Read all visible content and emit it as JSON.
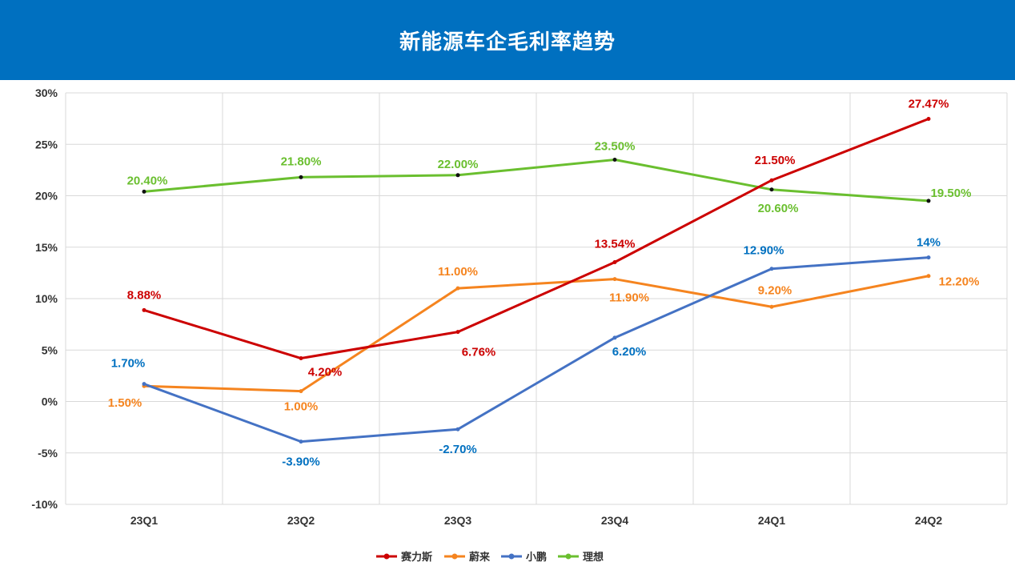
{
  "header": {
    "title": "新能源车企毛利率趋势"
  },
  "chart_data": {
    "type": "line",
    "title": "新能源车企毛利率趋势",
    "xlabel": "",
    "ylabel": "",
    "categories": [
      "23Q1",
      "23Q2",
      "23Q3",
      "23Q4",
      "24Q1",
      "24Q2"
    ],
    "ylim": [
      -10,
      30
    ],
    "yticks": [
      -10,
      -5,
      0,
      5,
      10,
      15,
      20,
      25,
      30
    ],
    "ytick_labels": [
      "-10%",
      "-5%",
      "0%",
      "5%",
      "10%",
      "15%",
      "20%",
      "25%",
      "30%"
    ],
    "grid": true,
    "legend_position": "bottom",
    "series": [
      {
        "name": "赛力斯",
        "color": "#cc0000",
        "label_color": "#cc0000",
        "values": [
          8.88,
          4.2,
          6.76,
          13.54,
          21.5,
          27.47
        ],
        "labels": [
          "8.88%",
          "4.20%",
          "6.76%",
          "13.54%",
          "21.50%",
          "27.47%"
        ]
      },
      {
        "name": "蔚来",
        "color": "#f5841f",
        "label_color": "#f5841f",
        "values": [
          1.5,
          1.0,
          11.0,
          11.9,
          9.2,
          12.2
        ],
        "labels": [
          "1.50%",
          "1.00%",
          "11.00%",
          "11.90%",
          "9.20%",
          "12.20%"
        ]
      },
      {
        "name": "小鹏",
        "color": "#4472c4",
        "label_color": "#0070c0",
        "values": [
          1.7,
          -3.9,
          -2.7,
          6.2,
          12.9,
          14.0
        ],
        "labels": [
          "1.70%",
          "-3.90%",
          "-2.70%",
          "6.20%",
          "12.90%",
          "14%"
        ]
      },
      {
        "name": "理想",
        "color": "#6abf2f",
        "label_color": "#6abf2f",
        "values": [
          20.4,
          21.8,
          22.0,
          23.5,
          20.6,
          19.5
        ],
        "labels": [
          "20.40%",
          "21.80%",
          "22.00%",
          "23.50%",
          "20.60%",
          "19.50%"
        ]
      }
    ]
  }
}
